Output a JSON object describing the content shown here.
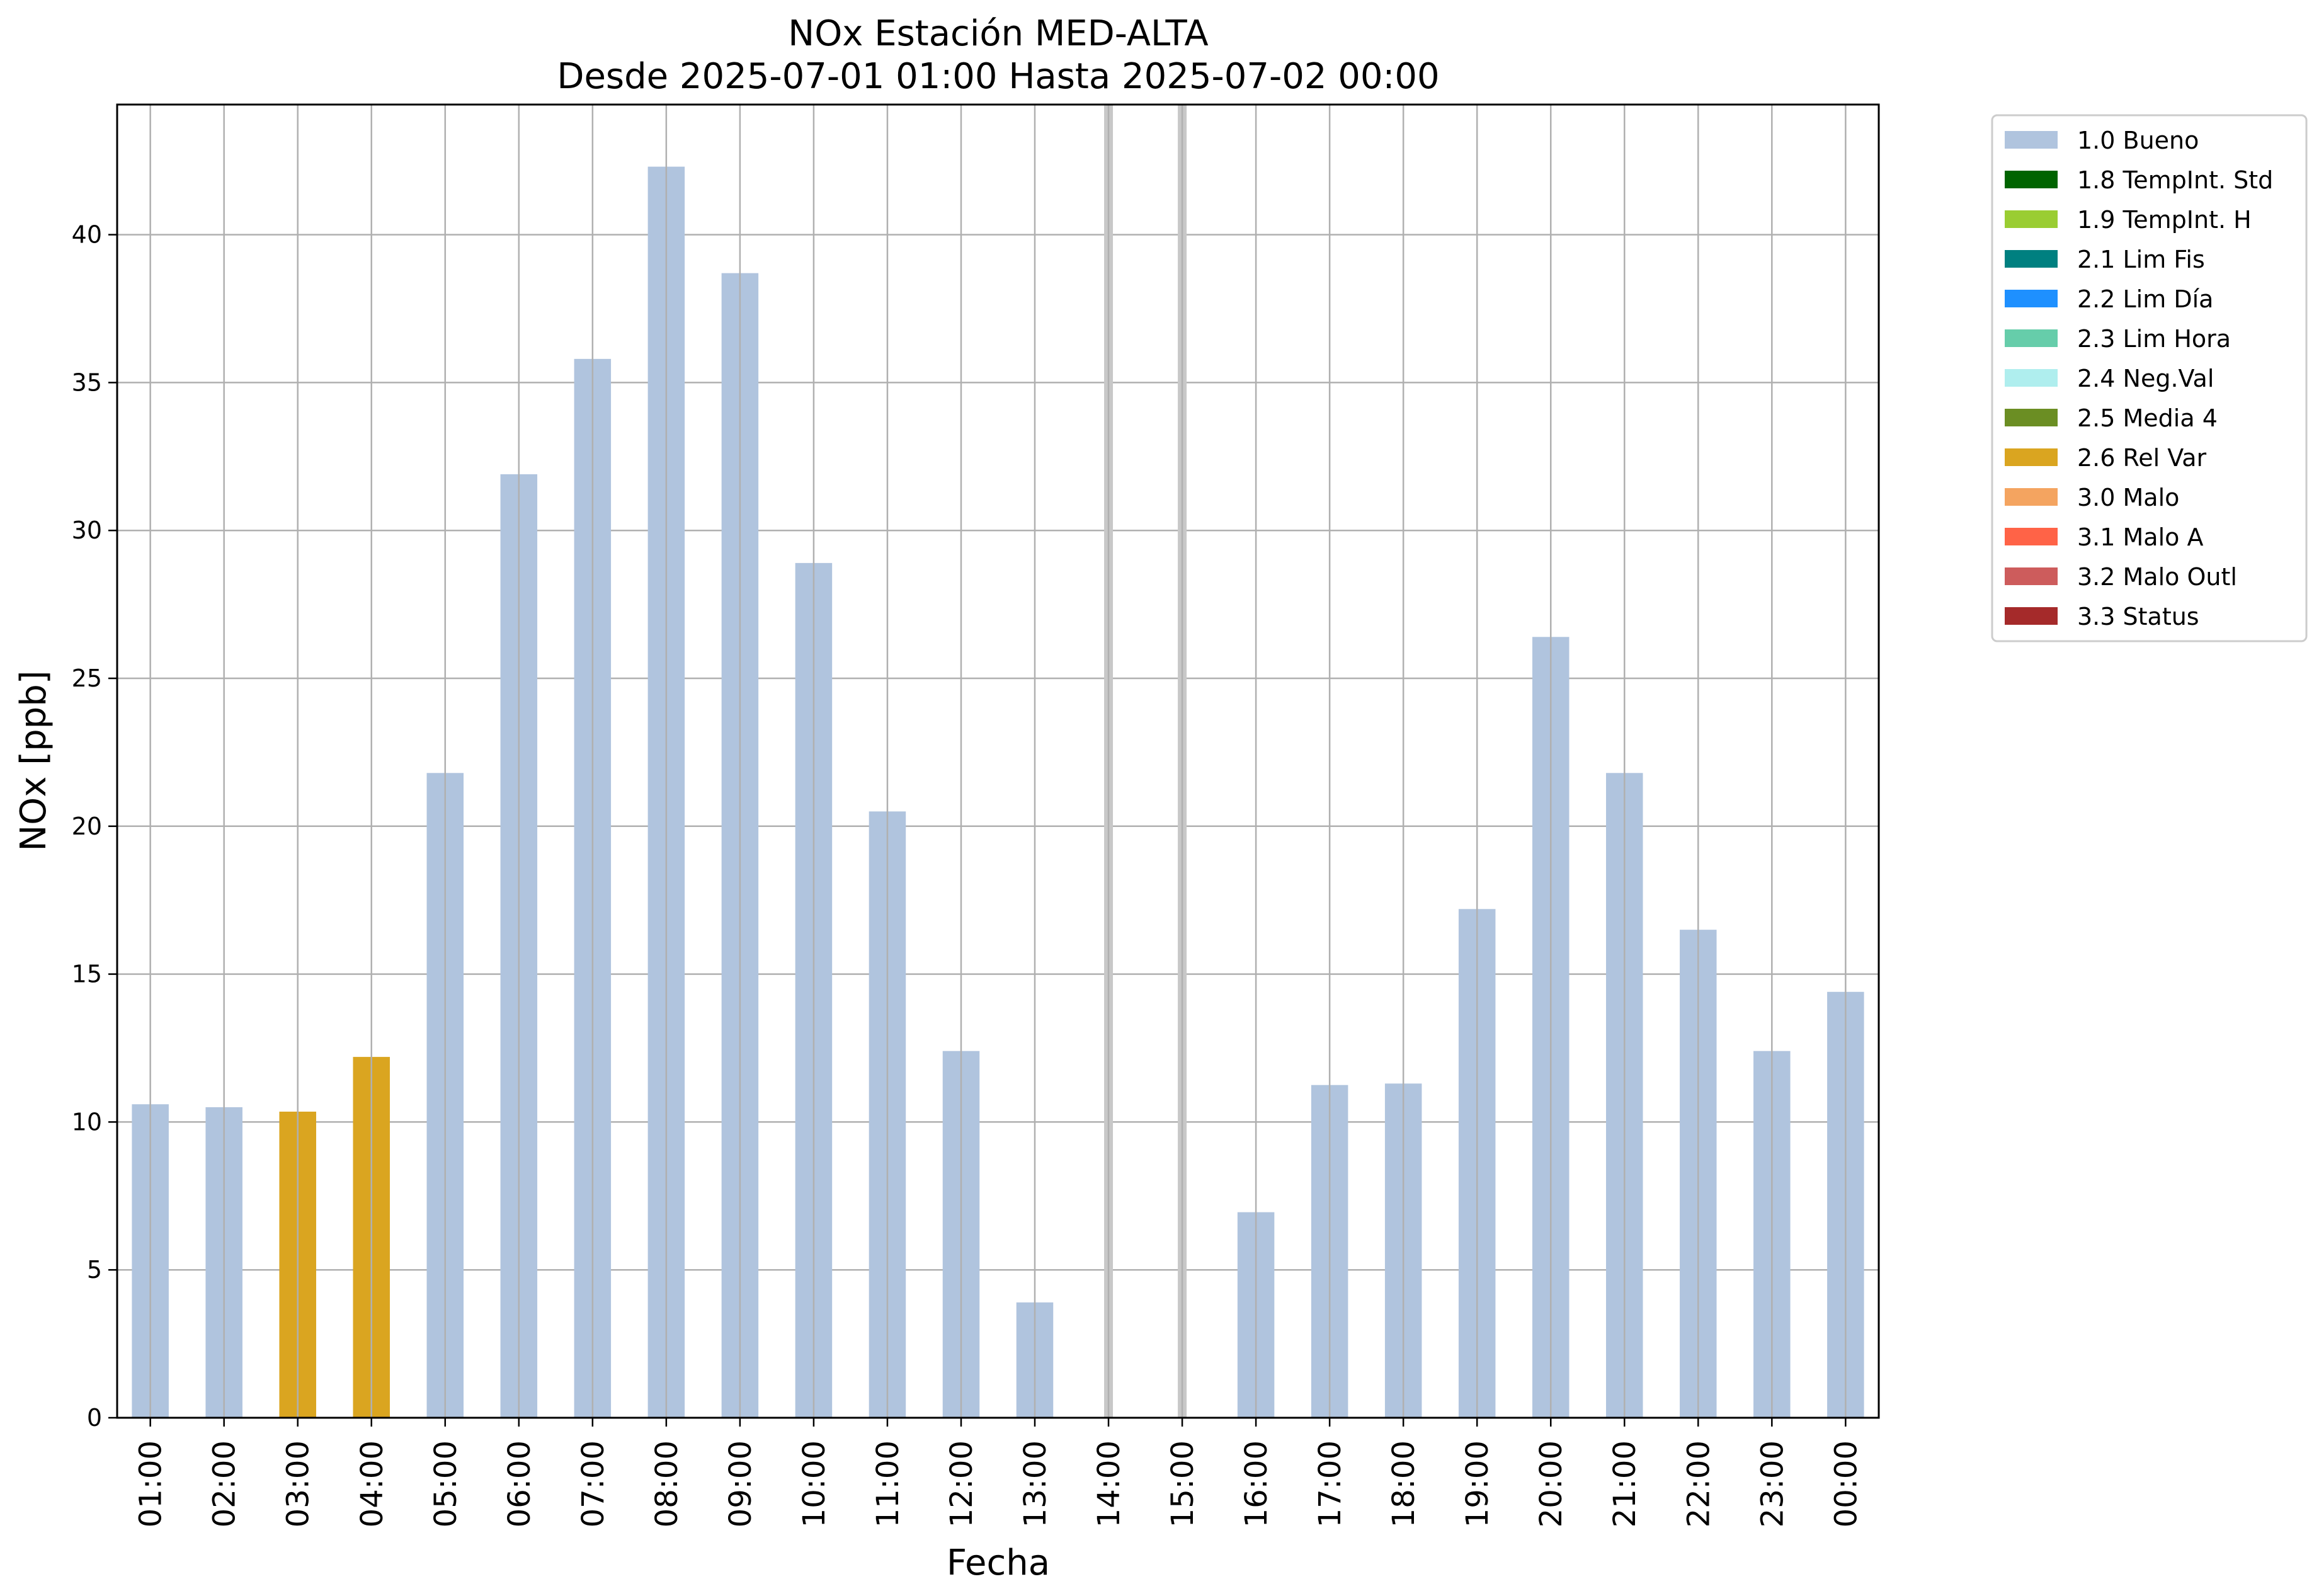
{
  "chart_data": {
    "type": "bar",
    "title": "NOx Estación MED-ALTA",
    "subtitle": "Desde 2025-07-01 01:00 Hasta 2025-07-02 00:00",
    "xlabel": "Fecha",
    "ylabel": "NOx [ppb]",
    "ylim": [
      0,
      44.4
    ],
    "yticks": [
      0,
      5,
      10,
      15,
      20,
      25,
      30,
      35,
      40
    ],
    "grid": true,
    "legend_position": "outside-top-right",
    "categories": [
      "01:00",
      "02:00",
      "03:00",
      "04:00",
      "05:00",
      "06:00",
      "07:00",
      "08:00",
      "09:00",
      "10:00",
      "11:00",
      "12:00",
      "13:00",
      "14:00",
      "15:00",
      "16:00",
      "17:00",
      "18:00",
      "19:00",
      "20:00",
      "21:00",
      "22:00",
      "23:00",
      "00:00"
    ],
    "values": [
      10.6,
      10.5,
      10.35,
      12.2,
      21.8,
      31.9,
      35.8,
      42.3,
      38.7,
      28.9,
      20.5,
      12.4,
      3.9,
      null,
      null,
      6.95,
      11.25,
      11.3,
      17.2,
      26.4,
      21.8,
      16.5,
      12.4,
      14.4
    ],
    "flags": [
      "1.0",
      "1.0",
      "2.6",
      "2.6",
      "1.0",
      "1.0",
      "1.0",
      "1.0",
      "1.0",
      "1.0",
      "1.0",
      "1.0",
      "1.0",
      null,
      null,
      "1.0",
      "1.0",
      "1.0",
      "1.0",
      "1.0",
      "1.0",
      "1.0",
      "1.0",
      "1.0"
    ],
    "missing_marker_color": "#c8c8c8",
    "legend": [
      {
        "code": "1.0",
        "label": "1.0 Bueno",
        "color": "#b0c4de"
      },
      {
        "code": "1.8",
        "label": "1.8 TempInt. Std",
        "color": "#006400"
      },
      {
        "code": "1.9",
        "label": "1.9 TempInt. H",
        "color": "#9acd32"
      },
      {
        "code": "2.1",
        "label": "2.1 Lim Fis",
        "color": "#008080"
      },
      {
        "code": "2.2",
        "label": "2.2 Lim Día",
        "color": "#1e90ff"
      },
      {
        "code": "2.3",
        "label": "2.3 Lim Hora",
        "color": "#66cdaa"
      },
      {
        "code": "2.4",
        "label": "2.4 Neg.Val",
        "color": "#afeeee"
      },
      {
        "code": "2.5",
        "label": "2.5 Media 4",
        "color": "#6b8e23"
      },
      {
        "code": "2.6",
        "label": "2.6 Rel Var",
        "color": "#daa520"
      },
      {
        "code": "3.0",
        "label": "3.0 Malo",
        "color": "#f4a460"
      },
      {
        "code": "3.1",
        "label": "3.1 Malo A",
        "color": "#ff6347"
      },
      {
        "code": "3.2",
        "label": "3.2 Malo Outl",
        "color": "#cd5c5c"
      },
      {
        "code": "3.3",
        "label": "3.3 Status",
        "color": "#a52a2a"
      }
    ]
  }
}
